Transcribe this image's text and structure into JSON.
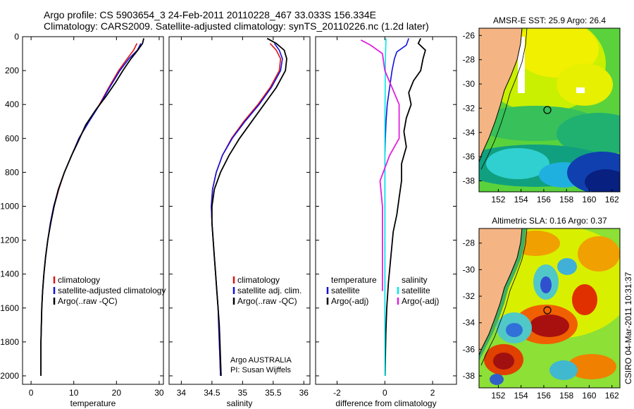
{
  "title": {
    "line1": "Argo profile: CS 5903654_3 24-Feb-2011 20110228_467 33.033S 156.334E",
    "line2": "Climatology: CARS2009. Satellite-adjusted climatology: synTS_20110226.nc (1.2d later)"
  },
  "side_label": "CSIRO 04-Mar-2011 10:31:37",
  "argo_credit": {
    "line1": "Argo AUSTRALIA",
    "line2": "PI: Susan Wijffels"
  },
  "colors": {
    "climatology": "#e01010",
    "satellite": "#1010e0",
    "argo": "#000000",
    "salinity_sat": "#00e8e8",
    "salinity_argo": "#e020e0",
    "land": "#f4b483"
  },
  "depth_ticks": [
    "0",
    "200",
    "400",
    "600",
    "800",
    "1000",
    "1200",
    "1400",
    "1600",
    "1800",
    "2000"
  ],
  "chart_data": [
    {
      "type": "line",
      "title": "",
      "xlabel": "temperature",
      "ylabel": "",
      "xlim": [
        -2,
        31
      ],
      "ylim": [
        2050,
        0
      ],
      "xticks": [
        "0",
        "10",
        "20",
        "30"
      ],
      "legend": [
        "climatology",
        "satellite-adjusted climatology",
        "Argo(..raw -QC)"
      ],
      "series": [
        {
          "name": "climatology",
          "color": "#e01010",
          "x": [
            24.8,
            24.0,
            22.5,
            20.5,
            18.2,
            16.0,
            13.5,
            11.2,
            9.5,
            7.8,
            6.5,
            5.4,
            4.6,
            3.9,
            3.4,
            3.0,
            2.7,
            2.5,
            2.4,
            2.3,
            2.3,
            2.3,
            2.3
          ],
          "y": [
            40,
            80,
            130,
            200,
            300,
            400,
            500,
            600,
            700,
            800,
            900,
            1000,
            1100,
            1200,
            1300,
            1400,
            1500,
            1600,
            1700,
            1800,
            1900,
            1950,
            2000
          ]
        },
        {
          "name": "satellite",
          "color": "#1010e0",
          "x": [
            25.7,
            24.9,
            22.9,
            20.8,
            18.4,
            16.1,
            13.6,
            11.2,
            9.5,
            7.8,
            6.4,
            5.3,
            4.5,
            3.9,
            3.4,
            3.0,
            2.7,
            2.5,
            2.4,
            2.3,
            2.3,
            2.3,
            2.3
          ],
          "y": [
            40,
            80,
            130,
            200,
            300,
            400,
            500,
            600,
            700,
            800,
            900,
            1000,
            1100,
            1200,
            1300,
            1400,
            1500,
            1600,
            1700,
            1800,
            1900,
            1950,
            2000
          ]
        },
        {
          "name": "Argo",
          "color": "#000000",
          "x": [
            26.4,
            26.1,
            25.0,
            23.4,
            21.5,
            19.8,
            17.6,
            15.2,
            12.8,
            11.0,
            9.5,
            7.8,
            6.4,
            5.4,
            4.6,
            3.9,
            3.4,
            3.0,
            2.7,
            2.5,
            2.4,
            2.3,
            2.3,
            2.3
          ],
          "y": [
            10,
            40,
            80,
            130,
            200,
            270,
            350,
            430,
            520,
            620,
            700,
            800,
            900,
            1000,
            1100,
            1200,
            1300,
            1400,
            1500,
            1600,
            1700,
            1800,
            1900,
            2000
          ]
        }
      ]
    },
    {
      "type": "line",
      "title": "",
      "xlabel": "salinity",
      "ylabel": "",
      "xlim": [
        33.8,
        36.1
      ],
      "ylim": [
        2050,
        0
      ],
      "xticks": [
        "34",
        "34.5",
        "35",
        "35.5",
        "36"
      ],
      "legend": [
        "climatology",
        "satellite adj. clim.",
        "Argo(..raw -QC)"
      ],
      "series": [
        {
          "name": "climatology",
          "color": "#e01010",
          "x": [
            35.45,
            35.55,
            35.62,
            35.6,
            35.45,
            35.25,
            35.02,
            34.82,
            34.67,
            34.57,
            34.51,
            34.49,
            34.5,
            34.52,
            34.54,
            34.56,
            34.58,
            34.6,
            34.61,
            34.62,
            34.63,
            34.64
          ],
          "y": [
            40,
            80,
            130,
            200,
            300,
            400,
            500,
            600,
            700,
            800,
            900,
            1000,
            1100,
            1200,
            1300,
            1400,
            1500,
            1600,
            1700,
            1800,
            1900,
            2000
          ]
        },
        {
          "name": "satellite",
          "color": "#1010e0",
          "x": [
            35.52,
            35.6,
            35.65,
            35.62,
            35.47,
            35.27,
            35.04,
            34.83,
            34.67,
            34.57,
            34.51,
            34.49,
            34.5,
            34.52,
            34.54,
            34.56,
            34.58,
            34.6,
            34.61,
            34.62,
            34.63,
            34.64
          ],
          "y": [
            40,
            80,
            130,
            200,
            300,
            400,
            500,
            600,
            700,
            800,
            900,
            1000,
            1100,
            1200,
            1300,
            1400,
            1500,
            1600,
            1700,
            1800,
            1900,
            2000
          ]
        },
        {
          "name": "Argo",
          "color": "#000000",
          "x": [
            35.4,
            35.55,
            35.68,
            35.72,
            35.7,
            35.55,
            35.35,
            35.15,
            34.95,
            34.78,
            34.64,
            34.54,
            34.5,
            34.5,
            34.52,
            34.54,
            34.56,
            34.58,
            34.6,
            34.62,
            34.63,
            34.64,
            34.65
          ],
          "y": [
            10,
            40,
            80,
            130,
            200,
            300,
            400,
            500,
            600,
            700,
            800,
            900,
            1000,
            1100,
            1200,
            1300,
            1400,
            1500,
            1600,
            1700,
            1800,
            1900,
            2000
          ]
        }
      ]
    },
    {
      "type": "line",
      "title": "",
      "xlabel": "difference from climatology",
      "ylabel": "",
      "xlim": [
        -2.9,
        3.0
      ],
      "ylim": [
        2050,
        0
      ],
      "xticks": [
        "-2",
        "0",
        "2"
      ],
      "legend": [
        "temperature",
        "satellite",
        "Argo(-adj)",
        "salinity",
        "satellite",
        "Argo(-adj)"
      ],
      "series": [
        {
          "name": "temperature satellite",
          "color": "#1010e0",
          "x": [
            1.0,
            0.9,
            0.5,
            0.4,
            0.3,
            0.2,
            0.1,
            0.05,
            0.02,
            0.0,
            0.0,
            0.0,
            0.0,
            0.0,
            0.0,
            0.0,
            0.0,
            0.0
          ],
          "y": [
            10,
            50,
            90,
            130,
            200,
            300,
            400,
            500,
            600,
            700,
            800,
            900,
            1000,
            1200,
            1400,
            1600,
            1800,
            2000
          ]
        },
        {
          "name": "temperature Argo",
          "color": "#000000",
          "x": [
            1.5,
            1.4,
            1.7,
            1.6,
            1.5,
            1.2,
            1.0,
            1.1,
            0.9,
            0.8,
            0.9,
            0.7,
            0.7,
            0.6,
            0.5,
            0.35,
            0.25,
            0.15,
            0.08,
            0.04,
            0.02,
            0.01
          ],
          "y": [
            10,
            40,
            80,
            130,
            200,
            260,
            330,
            400,
            480,
            560,
            650,
            750,
            850,
            950,
            1050,
            1150,
            1300,
            1450,
            1600,
            1750,
            1900,
            2000
          ]
        },
        {
          "name": "salinity satellite",
          "color": "#00e8e8",
          "x": [
            0.05,
            0.03,
            0.02,
            0.01,
            0.0,
            0.0,
            0.0,
            0.0,
            0.0,
            0.0,
            0.0,
            0.0
          ],
          "y": [
            10,
            100,
            200,
            400,
            600,
            800,
            1000,
            1200,
            1400,
            1600,
            1800,
            2000
          ]
        },
        {
          "name": "salinity Argo",
          "color": "#e020e0",
          "x": [
            -1.0,
            -0.6,
            -0.1,
            0.0,
            0.3,
            0.6,
            0.6,
            0.2,
            -0.2,
            -0.1,
            -0.1,
            -0.1,
            -0.1,
            -0.1
          ],
          "y": [
            20,
            50,
            100,
            200,
            300,
            400,
            600,
            700,
            850,
            1000,
            1150,
            1300,
            1400,
            1500
          ]
        }
      ]
    },
    {
      "type": "heatmap",
      "title": "AMSR-E SST: 25.9 Argo: 26.4",
      "xlabel": "",
      "ylabel": "",
      "xlim": [
        150.3,
        162.7
      ],
      "ylim": [
        -38.9,
        -25.4
      ],
      "xticks": [
        "152",
        "154",
        "156",
        "158",
        "160",
        "162"
      ],
      "yticks": [
        "-26",
        "-28",
        "-30",
        "-32",
        "-34",
        "-36",
        "-38"
      ],
      "argo_position": {
        "lon": 156.334,
        "lat": -33.033
      }
    },
    {
      "type": "heatmap",
      "title": "Altimetric SLA: 0.16 Argo: 0.37",
      "xlabel": "",
      "ylabel": "",
      "xlim": [
        150.3,
        162.7
      ],
      "ylim": [
        -38.9,
        -26.9
      ],
      "xticks": [
        "152",
        "154",
        "156",
        "158",
        "160",
        "162"
      ],
      "yticks": [
        "-28",
        "-30",
        "-32",
        "-34",
        "-36",
        "-38"
      ],
      "argo_position": {
        "lon": 156.334,
        "lat": -33.033
      }
    }
  ]
}
